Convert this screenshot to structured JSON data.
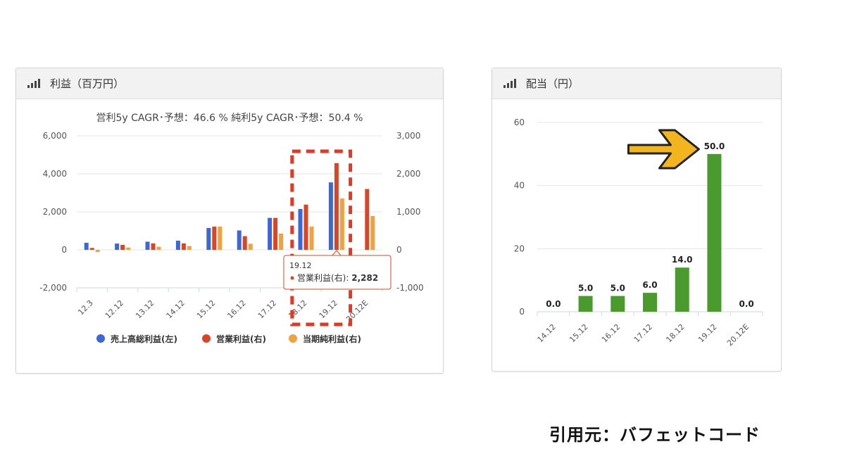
{
  "left_panel": {
    "title": "利益（百万円）"
  },
  "right_panel": {
    "title": "配当（円）"
  },
  "citation": "引用元：バフェットコード",
  "colors": {
    "blue": "#3f67d4",
    "red": "#d8462a",
    "orange": "#f0a242",
    "green": "#4a9a2e",
    "highlight": "#e03a26",
    "arrow": "#f3b51f"
  },
  "chart_data": [
    {
      "type": "bar",
      "title": "営利5y CAGR･予想：46.6 %   純利5y CAGR･予想：50.4 %",
      "categories": [
        "12.3",
        "12.12",
        "13.12",
        "14.12",
        "15.12",
        "16.12",
        "17.12",
        "18.12",
        "19.12",
        "20.12E"
      ],
      "y_left": {
        "ylim": [
          -2000,
          6000
        ],
        "ticks": [
          "-2,000",
          "0",
          "2,000",
          "4,000",
          "6,000"
        ]
      },
      "y_right": {
        "ylim": [
          -1000,
          3000
        ],
        "ticks": [
          "-1,000",
          "0",
          "1,000",
          "2,000",
          "3,000"
        ]
      },
      "series": [
        {
          "name": "売上高総利益(左)",
          "axis": "left",
          "values": [
            370,
            330,
            430,
            480,
            1150,
            1020,
            1680,
            2150,
            3550,
            null
          ]
        },
        {
          "name": "営業利益(右)",
          "axis": "right",
          "values": [
            50,
            130,
            170,
            170,
            610,
            360,
            840,
            1190,
            2282,
            1600
          ]
        },
        {
          "name": "当期純利益(右)",
          "axis": "right",
          "values": [
            -60,
            60,
            80,
            100,
            610,
            160,
            430,
            610,
            1350,
            890
          ]
        }
      ],
      "tooltip": {
        "category": "19.12",
        "series": "営業利益(右)",
        "value": "2,282"
      },
      "highlight_category": "18.12",
      "grid": true,
      "legend": "bottom"
    },
    {
      "type": "bar",
      "title": "",
      "categories": [
        "14.12",
        "15.12",
        "16.12",
        "17.12",
        "18.12",
        "19.12",
        "20.12E"
      ],
      "values": [
        0.0,
        5.0,
        5.0,
        6.0,
        14.0,
        50.0,
        0.0
      ],
      "value_labels": [
        "0.0",
        "5.0",
        "5.0",
        "6.0",
        "14.0",
        "50.0",
        "0.0"
      ],
      "ylim": [
        0,
        60
      ],
      "ticks": [
        "0",
        "20",
        "40",
        "60"
      ],
      "arrow_target": "19.12",
      "grid": true
    }
  ]
}
